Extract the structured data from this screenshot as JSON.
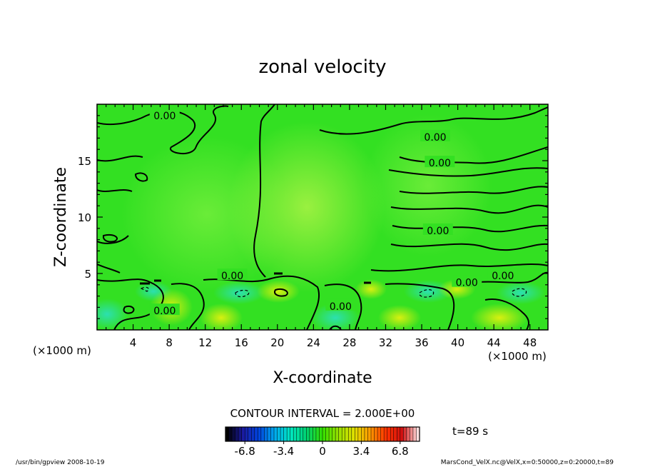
{
  "chart_data": {
    "type": "heatmap",
    "title": "zonal velocity",
    "xlabel": "X-coordinate",
    "ylabel": "Z-coordinate",
    "x_unit": "(×1000 m)",
    "y_unit": "(×1000 m)",
    "xlim": [
      0,
      50
    ],
    "ylim": [
      0,
      20
    ],
    "x_ticks": [
      4,
      8,
      12,
      16,
      20,
      24,
      28,
      32,
      36,
      40,
      44,
      48
    ],
    "y_ticks": [
      5,
      10,
      15
    ],
    "contour_interval_text": "CONTOUR INTERVAL = 2.000E+00",
    "contour_labels": [
      {
        "text": "0.00",
        "x": 7.5,
        "y": 19.0
      },
      {
        "text": "0.00",
        "x": 37.5,
        "y": 17.1
      },
      {
        "text": "0.00",
        "x": 38.0,
        "y": 14.8
      },
      {
        "text": "0.00",
        "x": 37.8,
        "y": 8.8
      },
      {
        "text": "0.00",
        "x": 15.0,
        "y": 4.8
      },
      {
        "text": "0.00",
        "x": 45.0,
        "y": 4.8
      },
      {
        "text": "0.00",
        "x": 41.0,
        "y": 4.2
      },
      {
        "text": "0.00",
        "x": 7.5,
        "y": 1.7
      },
      {
        "text": "0.00",
        "x": 27.0,
        "y": 2.1
      }
    ],
    "colorbar": {
      "ticks": [
        "-6.8",
        "-3.4",
        "0",
        "3.4",
        "6.8"
      ],
      "range": [
        -8.5,
        8.5
      ],
      "colors": [
        "#000000",
        "#1a1aa0",
        "#0044dd",
        "#00aaee",
        "#00e6c0",
        "#00d070",
        "#33e000",
        "#99e000",
        "#e0e000",
        "#ff9900",
        "#ff3300",
        "#d01010",
        "#ffe0e0"
      ]
    },
    "time_label": "t=89 s",
    "field_colors": {
      "background": "#2fe020",
      "upper_light": "#7aef30",
      "near_surface_cyan": "#33e0a0",
      "near_surface_yellow": "#ccf010"
    }
  },
  "footer": {
    "left": "/usr/bin/gpview   2008-10-19",
    "right": "MarsCond_VelX.nc@VelX,x=0:50000,z=0:20000,t=89"
  }
}
